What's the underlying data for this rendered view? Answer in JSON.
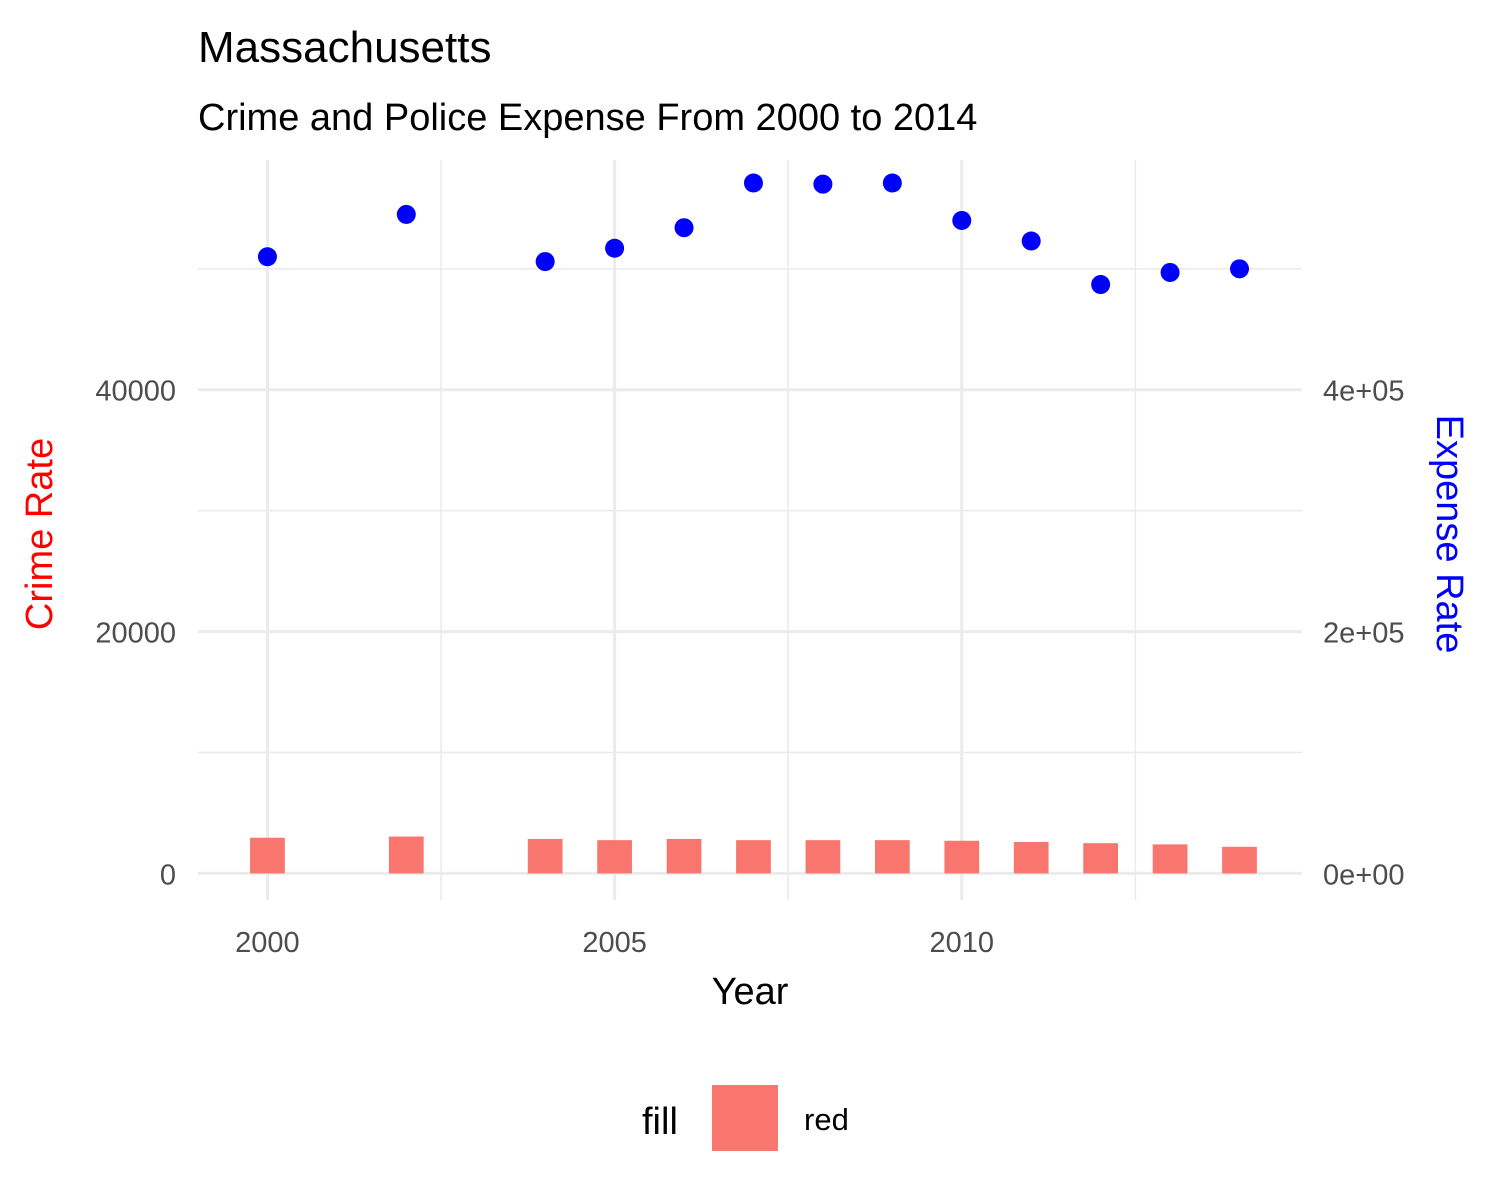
{
  "chart_data": {
    "type": "bar",
    "title": "Massachusetts",
    "subtitle": "Crime and Police Expense From 2000 to 2014",
    "xlabel": "Year",
    "ylabel_left": "Crime Rate",
    "ylabel_right": "Expense Rate",
    "ylabel_left_color": "#ff0000",
    "ylabel_right_color": "#0000ff",
    "xlim": [
      1999.0,
      2014.9
    ],
    "ylim_left": [
      -2200,
      59000
    ],
    "ylim_right": [
      -22000,
      590000
    ],
    "x_ticks": [
      2000,
      2005,
      2010
    ],
    "x_tick_labels": [
      "2000",
      "2005",
      "2010"
    ],
    "y_left_ticks": [
      0,
      20000,
      40000
    ],
    "y_left_tick_labels": [
      "0",
      "20000",
      "40000"
    ],
    "y_right_ticks": [
      0,
      200000,
      400000
    ],
    "y_right_tick_labels": [
      "0e+00",
      "2e+05",
      "4e+05"
    ],
    "grid": true,
    "legend_position": "bottom",
    "legend": {
      "title": "fill",
      "label": "red",
      "color": "#f8766d"
    },
    "series": [
      {
        "name": "red",
        "kind": "bar",
        "axis": "left",
        "color": "#f8766d",
        "x": [
          2000,
          2002,
          2004,
          2005,
          2006,
          2007,
          2008,
          2009,
          2010,
          2011,
          2012,
          2013,
          2014
        ],
        "values": [
          2950,
          3050,
          2850,
          2750,
          2850,
          2750,
          2750,
          2750,
          2700,
          2600,
          2500,
          2400,
          2200
        ]
      },
      {
        "kind": "point",
        "axis": "right",
        "color": "#0000ff",
        "x": [
          2000,
          2002,
          2004,
          2005,
          2006,
          2007,
          2008,
          2009,
          2010,
          2011,
          2012,
          2013,
          2014
        ],
        "values": [
          510000,
          545000,
          506000,
          517000,
          534000,
          571000,
          570000,
          571000,
          540000,
          523000,
          487000,
          497000,
          500000
        ]
      }
    ]
  }
}
